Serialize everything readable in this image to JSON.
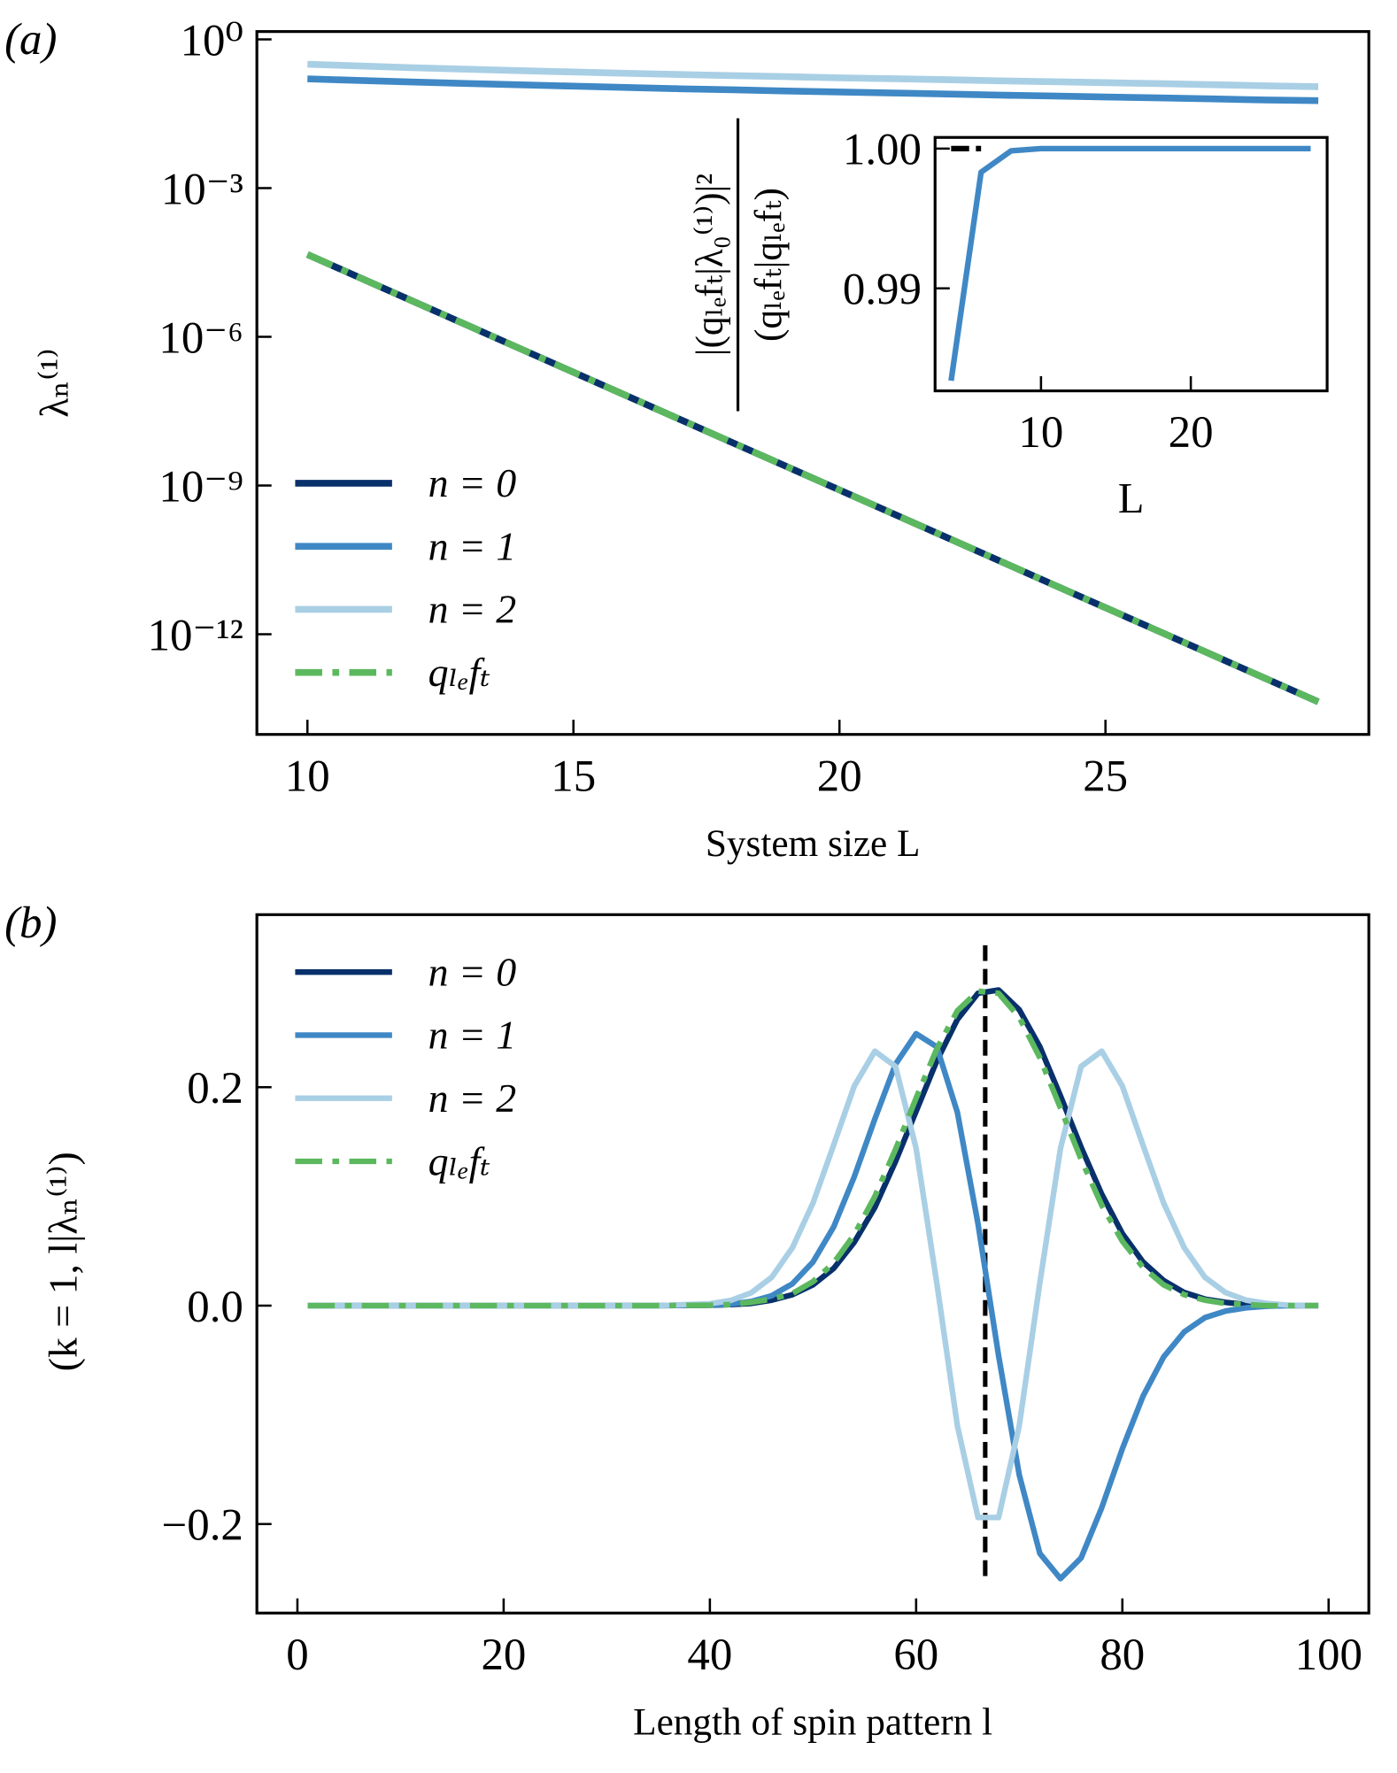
{
  "chart_data": [
    {
      "type": "line",
      "panel_label": "(a)",
      "xlabel": "System size L",
      "ylabel": "λₙ⁽¹⁾",
      "x": [
        10,
        11,
        12,
        13,
        14,
        15,
        16,
        17,
        18,
        19,
        20,
        21,
        22,
        23,
        24,
        25,
        26,
        27,
        28,
        29
      ],
      "xlim": [
        9.05,
        29.95
      ],
      "xticks": [
        10,
        15,
        20,
        25
      ],
      "ylog": true,
      "ylim": [
        9.5e-15,
        1.44
      ],
      "yticks": [
        {
          "value": 1,
          "label": "10⁰"
        },
        {
          "value": 0.001,
          "label": "10⁻³"
        },
        {
          "value": 1e-06,
          "label": "10⁻⁶"
        },
        {
          "value": 1e-09,
          "label": "10⁻⁹"
        },
        {
          "value": 1e-12,
          "label": "10⁻¹²"
        }
      ],
      "legend": "lower left",
      "series": [
        {
          "name": "n = 0",
          "color": "#08306b",
          "values": [
            4.57e-05,
            1.53e-05,
            5.13e-06,
            1.72e-06,
            5.75e-07,
            1.93e-07,
            6.46e-08,
            2.16e-08,
            7.24e-09,
            2.43e-09,
            8.13e-10,
            2.72e-10,
            9.12e-11,
            3.05e-11,
            1.02e-11,
            3.43e-12,
            1.15e-12,
            3.85e-13,
            1.29e-13,
            4.32e-14
          ]
        },
        {
          "name": "n = 1",
          "color": "#3f88c5",
          "values": [
            0.16,
            0.148,
            0.138,
            0.129,
            0.121,
            0.114,
            0.107,
            0.101,
            0.096,
            0.091,
            0.087,
            0.083,
            0.079,
            0.075,
            0.072,
            0.069,
            0.066,
            0.063,
            0.06,
            0.058
          ]
        },
        {
          "name": "n = 2",
          "color": "#a9cfe5",
          "values": [
            0.316,
            0.29,
            0.268,
            0.25,
            0.234,
            0.22,
            0.207,
            0.196,
            0.186,
            0.177,
            0.168,
            0.161,
            0.154,
            0.146,
            0.14,
            0.134,
            0.128,
            0.122,
            0.116,
            0.111
          ]
        },
        {
          "name": "qₗₑfₜ",
          "color": "#5cb85f",
          "linestyle": "dashdot",
          "values": [
            4.57e-05,
            1.53e-05,
            5.13e-06,
            1.72e-06,
            5.75e-07,
            1.93e-07,
            6.46e-08,
            2.16e-08,
            7.24e-09,
            2.43e-09,
            8.13e-10,
            2.72e-10,
            9.12e-11,
            3.05e-11,
            1.02e-11,
            3.43e-12,
            1.15e-12,
            3.85e-13,
            1.29e-13,
            4.32e-14
          ]
        }
      ]
    },
    {
      "type": "line",
      "inset": true,
      "xlabel": "L",
      "ylabel": {
        "numerator": "|(qₗₑfₜ|λ₀⁽¹⁾)|²",
        "denominator": "(qₗₑfₜ|qₗₑfₜ)"
      },
      "x": [
        4,
        6,
        8,
        10,
        12,
        14,
        16,
        18,
        20,
        22,
        24,
        26,
        28
      ],
      "xlim": [
        2.93,
        29.1
      ],
      "xticks": [
        10,
        20
      ],
      "ylim": [
        0.98266,
        1.0008
      ],
      "yticks": [
        {
          "value": 1,
          "label": "1.00"
        },
        0.99
      ],
      "hline": {
        "y": 1,
        "x": [
          4,
          6
        ]
      },
      "series": [
        {
          "name": null,
          "color": "#3f88c5",
          "values": [
            0.98339,
            0.99831,
            0.99984,
            1,
            1,
            1,
            1,
            1,
            1,
            1,
            1,
            1,
            1
          ]
        }
      ]
    },
    {
      "type": "line",
      "panel_label": "(b)",
      "xlabel": "Length of spin pattern l",
      "ylabel": "(k = 1, l|λₙ⁽¹⁾)",
      "x": [
        1,
        10,
        20,
        30,
        35,
        40,
        42,
        44,
        46,
        48,
        50,
        52,
        54,
        56,
        58,
        60,
        62,
        64,
        66,
        68,
        70,
        72,
        74,
        76,
        78,
        80,
        82,
        84,
        86,
        88,
        90,
        92,
        94,
        96,
        98,
        99
      ],
      "xlim": [
        -3.93,
        103.9
      ],
      "xticks": [
        0,
        20,
        40,
        60,
        80,
        100
      ],
      "ylim": [
        -0.2815,
        0.358
      ],
      "yticks": [
        {
          "value": -0.2,
          "label": "−0.2"
        },
        {
          "value": 0,
          "label": "0.0"
        },
        0.2
      ],
      "vline": {
        "x": 66.7,
        "y": [
          -0.25,
          0.33
        ]
      },
      "legend": "upper left",
      "series": [
        {
          "name": "n = 0",
          "color": "#08306b",
          "values": [
            0,
            0,
            0,
            0,
            0,
            0.0003,
            0.001,
            0.002,
            0.005,
            0.01,
            0.019,
            0.034,
            0.058,
            0.09,
            0.132,
            0.178,
            0.224,
            0.262,
            0.286,
            0.289,
            0.271,
            0.237,
            0.192,
            0.145,
            0.102,
            0.066,
            0.04,
            0.023,
            0.012,
            0.006,
            0.003,
            0.001,
            0,
            0,
            0,
            0
          ]
        },
        {
          "name": "n = 1",
          "color": "#3f88c5",
          "values": [
            0,
            0,
            0,
            0,
            0,
            0.0005,
            0.0014,
            0.0038,
            0.0091,
            0.02,
            0.04,
            0.072,
            0.118,
            0.171,
            0.221,
            0.249,
            0.237,
            0.177,
            0.075,
            -0.046,
            -0.155,
            -0.227,
            -0.25,
            -0.231,
            -0.185,
            -0.131,
            -0.083,
            -0.047,
            -0.024,
            -0.011,
            -0.005,
            -0.002,
            -0.0006,
            0,
            0,
            0
          ]
        },
        {
          "name": "n = 2",
          "color": "#a9cfe5",
          "values": [
            0,
            0,
            0,
            0,
            0,
            0.0017,
            0.0047,
            0.0117,
            0.026,
            0.053,
            0.094,
            0.147,
            0.201,
            0.233,
            0.219,
            0.144,
            0.021,
            -0.11,
            -0.194,
            -0.194,
            -0.11,
            0.021,
            0.144,
            0.219,
            0.233,
            0.201,
            0.147,
            0.094,
            0.053,
            0.026,
            0.012,
            0.005,
            0.002,
            0.0005,
            0,
            0
          ]
        },
        {
          "name": "qₗₑfₜ",
          "color": "#5cb85f",
          "linestyle": "dashdot",
          "values": [
            0,
            0,
            0,
            0,
            0,
            0.0004,
            0.001,
            0.003,
            0.006,
            0.011,
            0.022,
            0.039,
            0.065,
            0.1,
            0.143,
            0.19,
            0.235,
            0.27,
            0.288,
            0.286,
            0.264,
            0.227,
            0.181,
            0.134,
            0.092,
            0.059,
            0.035,
            0.019,
            0.01,
            0.005,
            0.002,
            0.001,
            0,
            0,
            0,
            0
          ]
        }
      ]
    }
  ]
}
